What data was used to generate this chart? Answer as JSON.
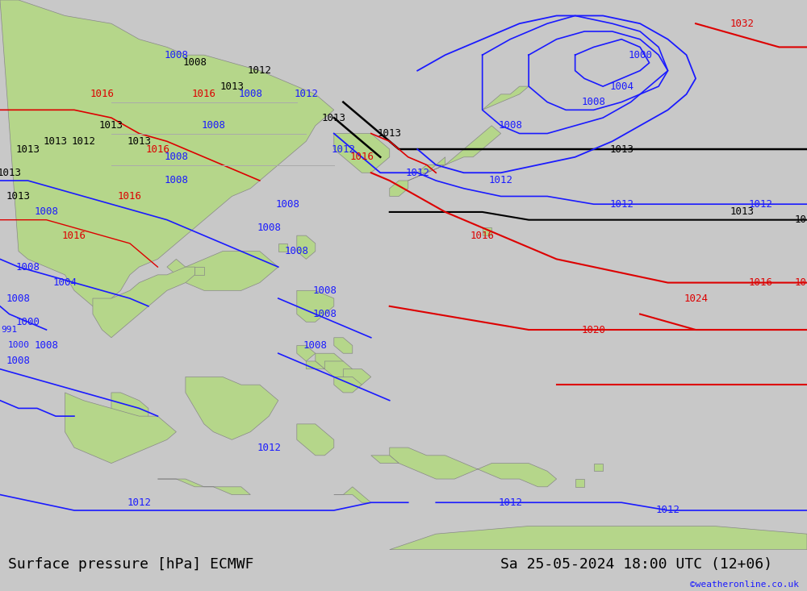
{
  "title_left": "Surface pressure [hPa] ECMWF",
  "title_right": "Sa 25-05-2024 18:00 UTC (12+06)",
  "watermark": "©weatheronline.co.uk",
  "bg_color": "#c8c8c8",
  "land_color": "#b5d68a",
  "sea_color": "#dcdcdc",
  "font_color_black": "#000000",
  "font_color_blue": "#1a1aff",
  "font_color_red": "#dd0000",
  "contour_black": "#000000",
  "contour_blue": "#1a1aff",
  "contour_red": "#dd0000",
  "contour_gray": "#aaaaaa",
  "bottom_bar_color": "#d8d8d8",
  "title_fontsize": 13,
  "label_fontsize": 9,
  "watermark_fontsize": 8,
  "map_lon_min": 88,
  "map_lon_max": 175,
  "map_lat_min": -15,
  "map_lat_max": 55
}
